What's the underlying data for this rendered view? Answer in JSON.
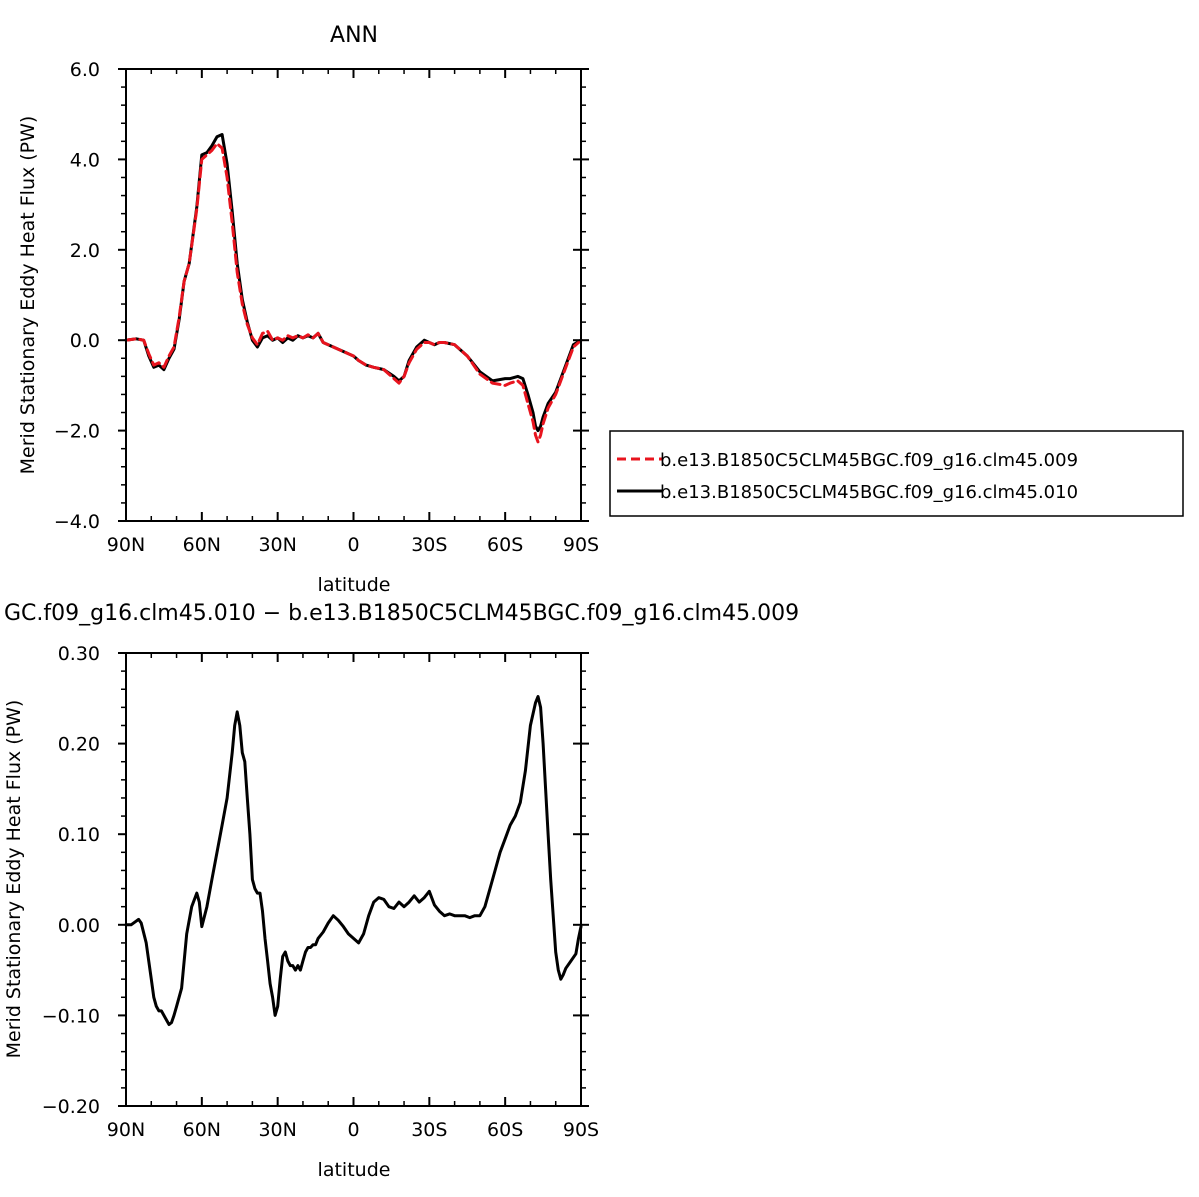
{
  "chart_data": [
    {
      "type": "line",
      "title": "ANN",
      "xlabel": "latitude",
      "ylabel": "Merid Stationary Eddy Heat Flux (PW)",
      "xlim": [
        90,
        -90
      ],
      "ylim": [
        -4.0,
        6.0
      ],
      "xticks": [
        90,
        60,
        30,
        0,
        -30,
        -60,
        -90
      ],
      "xtick_labels": [
        "90N",
        "60N",
        "30N",
        "0",
        "30S",
        "60S",
        "90S"
      ],
      "yticks": [
        -4.0,
        -2.0,
        0.0,
        2.0,
        4.0,
        6.0
      ],
      "ytick_labels": [
        "−4.0",
        "−2.0",
        "0.0",
        "2.0",
        "4.0",
        "6.0"
      ],
      "grid": false,
      "legend_position": "right",
      "series": [
        {
          "name": "b.e13.B1850C5CLM45BGC.f09_g16.clm45.009",
          "color": "#e8141e",
          "dash": "dashed",
          "x": [
            90,
            86,
            83,
            81,
            79,
            77,
            75,
            73,
            71,
            69,
            67,
            65,
            62,
            60,
            58,
            56,
            54,
            52,
            50,
            48,
            46,
            44,
            42,
            40,
            38,
            36,
            34,
            32,
            30,
            28,
            26,
            24,
            22,
            20,
            18,
            16,
            14,
            12,
            10,
            8,
            6,
            4,
            2,
            0,
            -2,
            -5,
            -8,
            -12,
            -16,
            -18,
            -20,
            -22,
            -25,
            -28,
            -30,
            -32,
            -34,
            -36,
            -40,
            -45,
            -50,
            -55,
            -60,
            -62,
            -65,
            -67,
            -69,
            -71,
            -72,
            -73,
            -74,
            -75,
            -77,
            -80,
            -84,
            -87,
            -90
          ],
          "y": [
            0.0,
            0.03,
            0.0,
            -0.3,
            -0.55,
            -0.5,
            -0.6,
            -0.35,
            -0.15,
            0.5,
            1.3,
            1.7,
            2.9,
            4.0,
            4.1,
            4.2,
            4.35,
            4.25,
            3.6,
            2.6,
            1.5,
            0.8,
            0.35,
            0.05,
            -0.1,
            0.15,
            0.2,
            0.0,
            0.05,
            0.0,
            0.1,
            0.05,
            0.1,
            0.05,
            0.12,
            0.05,
            0.15,
            -0.05,
            -0.1,
            -0.15,
            -0.2,
            -0.25,
            -0.3,
            -0.35,
            -0.45,
            -0.55,
            -0.6,
            -0.65,
            -0.85,
            -0.95,
            -0.8,
            -0.5,
            -0.2,
            -0.05,
            -0.05,
            -0.1,
            -0.05,
            -0.05,
            -0.1,
            -0.35,
            -0.75,
            -0.95,
            -1.0,
            -0.95,
            -0.9,
            -1.0,
            -1.4,
            -1.8,
            -2.1,
            -2.25,
            -2.1,
            -1.85,
            -1.5,
            -1.2,
            -0.6,
            -0.15,
            0.0
          ]
        },
        {
          "name": "b.e13.B1850C5CLM45BGC.f09_g16.clm45.010",
          "color": "#000000",
          "dash": "solid",
          "x": [
            90,
            86,
            83,
            81,
            79,
            77,
            75,
            73,
            71,
            69,
            67,
            65,
            62,
            60,
            58,
            56,
            54,
            52,
            50,
            48,
            46,
            44,
            42,
            40,
            38,
            36,
            34,
            32,
            30,
            28,
            26,
            24,
            22,
            20,
            18,
            16,
            14,
            12,
            10,
            8,
            6,
            4,
            2,
            0,
            -2,
            -5,
            -8,
            -12,
            -16,
            -18,
            -20,
            -22,
            -25,
            -28,
            -30,
            -32,
            -34,
            -36,
            -40,
            -45,
            -50,
            -55,
            -60,
            -62,
            -65,
            -67,
            -69,
            -71,
            -72,
            -73,
            -74,
            -75,
            -77,
            -80,
            -84,
            -87,
            -90
          ],
          "y": [
            0.0,
            0.03,
            0.0,
            -0.35,
            -0.6,
            -0.55,
            -0.65,
            -0.4,
            -0.2,
            0.45,
            1.3,
            1.7,
            2.95,
            4.1,
            4.15,
            4.3,
            4.5,
            4.55,
            3.9,
            2.85,
            1.7,
            0.9,
            0.4,
            0.0,
            -0.15,
            0.05,
            0.1,
            0.0,
            0.05,
            -0.05,
            0.05,
            0.0,
            0.1,
            0.05,
            0.1,
            0.05,
            0.15,
            -0.05,
            -0.1,
            -0.15,
            -0.2,
            -0.25,
            -0.3,
            -0.35,
            -0.45,
            -0.55,
            -0.6,
            -0.65,
            -0.8,
            -0.9,
            -0.8,
            -0.45,
            -0.15,
            0.0,
            -0.05,
            -0.1,
            -0.05,
            -0.05,
            -0.1,
            -0.35,
            -0.7,
            -0.9,
            -0.85,
            -0.85,
            -0.8,
            -0.85,
            -1.2,
            -1.6,
            -1.9,
            -2.0,
            -1.9,
            -1.7,
            -1.4,
            -1.15,
            -0.55,
            -0.1,
            0.0
          ]
        }
      ]
    },
    {
      "type": "line",
      "title": "GC.f09_g16.clm45.010 − b.e13.B1850C5CLM45BGC.f09_g16.clm45.009",
      "xlabel": "latitude",
      "ylabel": "Merid Stationary Eddy Heat Flux (PW)",
      "xlim": [
        90,
        -90
      ],
      "ylim": [
        -0.2,
        0.3
      ],
      "xticks": [
        90,
        60,
        30,
        0,
        -30,
        -60,
        -90
      ],
      "xtick_labels": [
        "90N",
        "60N",
        "30N",
        "0",
        "30S",
        "60S",
        "90S"
      ],
      "yticks": [
        -0.2,
        -0.1,
        0.0,
        0.1,
        0.2,
        0.3
      ],
      "ytick_labels": [
        "−0.20",
        "−0.10",
        "0.00",
        "0.10",
        "0.20",
        "0.30"
      ],
      "grid": false,
      "series": [
        {
          "color": "#000000",
          "dash": "solid",
          "x": [
            90,
            88,
            86,
            85,
            84,
            82,
            80,
            79,
            78,
            77,
            76,
            75,
            74,
            73,
            72,
            71,
            70,
            68,
            66,
            64,
            62,
            61,
            60,
            58,
            56,
            54,
            52,
            50,
            48,
            47,
            46,
            45,
            44,
            43,
            42,
            41,
            40,
            39,
            38,
            37,
            36,
            35,
            34,
            33,
            32,
            31,
            30,
            29,
            28,
            27,
            26,
            25,
            24,
            23,
            22,
            21,
            20,
            19,
            18,
            17,
            16,
            15,
            14,
            12,
            10,
            8,
            6,
            4,
            2,
            0,
            -2,
            -4,
            -6,
            -8,
            -10,
            -12,
            -14,
            -16,
            -18,
            -20,
            -22,
            -24,
            -26,
            -28,
            -30,
            -32,
            -34,
            -36,
            -38,
            -40,
            -42,
            -44,
            -46,
            -48,
            -50,
            -52,
            -54,
            -56,
            -58,
            -60,
            -62,
            -64,
            -66,
            -68,
            -70,
            -72,
            -73,
            -74,
            -75,
            -76,
            -77,
            -78,
            -80,
            -81,
            -82,
            -83,
            -84,
            -86,
            -88,
            -89,
            -90
          ],
          "y": [
            0.0,
            0.0,
            0.004,
            0.006,
            0.002,
            -0.02,
            -0.06,
            -0.08,
            -0.09,
            -0.095,
            -0.095,
            -0.1,
            -0.105,
            -0.11,
            -0.108,
            -0.1,
            -0.09,
            -0.07,
            -0.01,
            0.02,
            0.035,
            0.025,
            -0.002,
            0.02,
            0.05,
            0.08,
            0.11,
            0.14,
            0.19,
            0.22,
            0.235,
            0.22,
            0.19,
            0.18,
            0.14,
            0.1,
            0.05,
            0.04,
            0.035,
            0.035,
            0.015,
            -0.015,
            -0.04,
            -0.065,
            -0.08,
            -0.1,
            -0.09,
            -0.06,
            -0.035,
            -0.03,
            -0.04,
            -0.045,
            -0.045,
            -0.05,
            -0.045,
            -0.05,
            -0.04,
            -0.03,
            -0.025,
            -0.025,
            -0.022,
            -0.022,
            -0.015,
            -0.008,
            0.002,
            0.01,
            0.005,
            -0.002,
            -0.01,
            -0.015,
            -0.02,
            -0.01,
            0.01,
            0.025,
            0.03,
            0.028,
            0.02,
            0.018,
            0.025,
            0.02,
            0.025,
            0.032,
            0.025,
            0.03,
            0.037,
            0.022,
            0.015,
            0.01,
            0.012,
            0.01,
            0.01,
            0.01,
            0.008,
            0.01,
            0.01,
            0.02,
            0.04,
            0.06,
            0.08,
            0.095,
            0.11,
            0.12,
            0.135,
            0.17,
            0.22,
            0.245,
            0.252,
            0.24,
            0.2,
            0.15,
            0.1,
            0.05,
            -0.03,
            -0.05,
            -0.06,
            -0.055,
            -0.048,
            -0.04,
            -0.032,
            -0.015,
            -0.002
          ]
        }
      ]
    }
  ]
}
